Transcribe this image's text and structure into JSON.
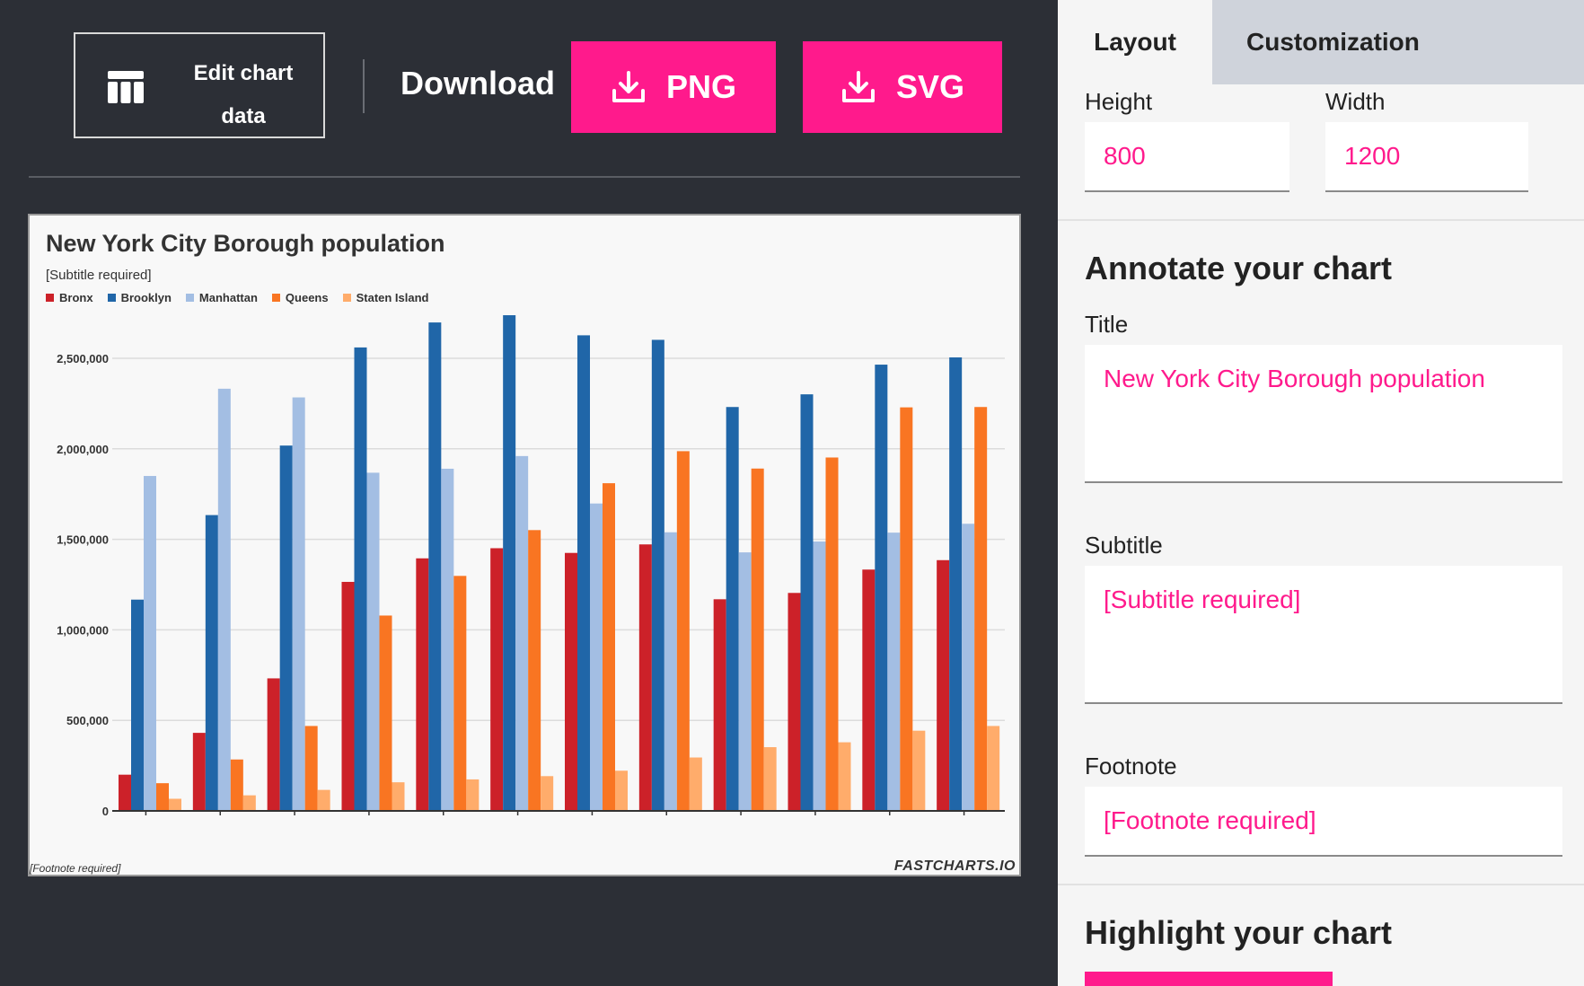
{
  "toolbar": {
    "edit_label": "Edit chart data",
    "download_label": "Download",
    "png_label": "PNG",
    "svg_label": "SVG"
  },
  "chart": {
    "title": "New York City Borough population",
    "subtitle": "[Subtitle required]",
    "footnote": "[Footnote required]",
    "brand": "FASTCHARTS.IO"
  },
  "chart_data": {
    "type": "bar",
    "categories": [
      "",
      "",
      "",
      "",
      "",
      "",
      "",
      "",
      "",
      "",
      "",
      ""
    ],
    "series": [
      {
        "name": "Bronx",
        "color": "#cc2129",
        "values": [
          200000,
          431000,
          732000,
          1265000,
          1395000,
          1451000,
          1425000,
          1472000,
          1169000,
          1204000,
          1333000,
          1385000
        ]
      },
      {
        "name": "Brooklyn",
        "color": "#2066a8",
        "values": [
          1167000,
          1634000,
          2018000,
          2560000,
          2698000,
          2738000,
          2627000,
          2602000,
          2231000,
          2301000,
          2465000,
          2505000
        ]
      },
      {
        "name": "Manhattan",
        "color": "#a3bee3",
        "values": [
          1850000,
          2332000,
          2284000,
          1868000,
          1890000,
          1960000,
          1698000,
          1539000,
          1428000,
          1488000,
          1537000,
          1586000
        ]
      },
      {
        "name": "Queens",
        "color": "#f97522",
        "values": [
          153000,
          284000,
          469000,
          1079000,
          1298000,
          1551000,
          1810000,
          1987000,
          1891000,
          1952000,
          2229000,
          2231000
        ]
      },
      {
        "name": "Staten Island",
        "color": "#ffac6b",
        "values": [
          67000,
          86000,
          116000,
          158000,
          174000,
          192000,
          222000,
          295000,
          352000,
          379000,
          443000,
          469000
        ]
      }
    ],
    "ylim": [
      0,
      2750000
    ],
    "yticks": [
      0,
      500000,
      1000000,
      1500000,
      2000000,
      2500000
    ],
    "ytick_labels": [
      "0",
      "500,000",
      "1,000,000",
      "1,500,000",
      "2,000,000",
      "2,500,000"
    ],
    "grid": true,
    "legend": "top-left"
  },
  "panel": {
    "tab_layout": "Layout",
    "tab_custom": "Customization",
    "height_label": "Height",
    "height_value": "800",
    "width_label": "Width",
    "width_value": "1200",
    "annotate_heading": "Annotate your chart",
    "title_label": "Title",
    "title_value": "New York City Borough population",
    "subtitle_label": "Subtitle",
    "subtitle_value": "[Subtitle required]",
    "footnote_label": "Footnote",
    "footnote_value": "[Footnote required]",
    "highlight_heading": "Highlight your chart"
  },
  "colors": {
    "accent": "#ff1a8c",
    "dark_bg": "#2c2f36",
    "panel_bg": "#f5f5f5"
  }
}
